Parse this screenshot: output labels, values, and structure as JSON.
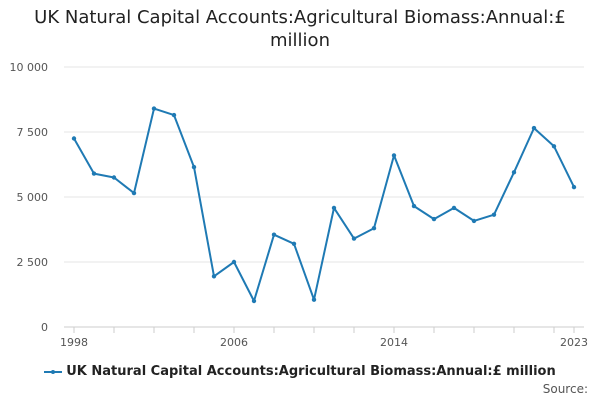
{
  "title_line1": "UK Natural Capital Accounts:Agricultural Biomass:Annual:£",
  "title_line2": "million",
  "source_label": "Source:",
  "colors": {
    "series": "#1f7ab4",
    "grid": "#e6e6e6",
    "axis": "#cccccc"
  },
  "chart_data": {
    "type": "line",
    "title": "UK Natural Capital Accounts:Agricultural Biomass:Annual:£ million",
    "xlabel": "",
    "ylabel": "",
    "ylim": [
      0,
      10000
    ],
    "xlim": [
      1998,
      2023
    ],
    "y_ticks": [
      0,
      2500,
      5000,
      7500,
      10000
    ],
    "y_tick_labels": [
      "0",
      "2 500",
      "5 000",
      "7 500",
      "10 000"
    ],
    "x_tick_labels": [
      "1998",
      "2006",
      "2014",
      "2023"
    ],
    "x_tick_values": [
      1998,
      2006,
      2014,
      2023
    ],
    "grid": true,
    "legend_position": "bottom",
    "series": [
      {
        "name": "UK Natural Capital Accounts:Agricultural Biomass:Annual:£ million",
        "x": [
          1998,
          1999,
          2000,
          2001,
          2002,
          2003,
          2004,
          2005,
          2006,
          2007,
          2008,
          2009,
          2010,
          2011,
          2012,
          2013,
          2014,
          2015,
          2016,
          2017,
          2018,
          2019,
          2020,
          2021,
          2022,
          2023
        ],
        "values": [
          7250,
          5900,
          5750,
          5150,
          8400,
          8150,
          6150,
          1950,
          2500,
          1000,
          3550,
          3200,
          1050,
          4580,
          3400,
          3800,
          6600,
          4650,
          4150,
          4580,
          4080,
          4320,
          5950,
          7650,
          6950,
          5380
        ]
      }
    ]
  }
}
